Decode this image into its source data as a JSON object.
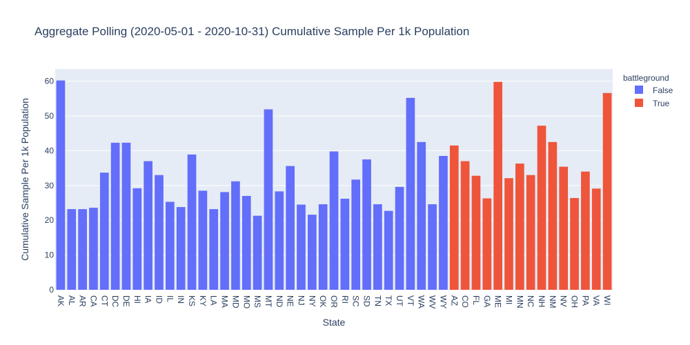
{
  "chart_data": {
    "type": "bar",
    "title": "Aggregate Polling (2020-05-01 - 2020-10-31) Cumulative Sample Per 1k Population",
    "xlabel": "State",
    "ylabel": "Cumulative Sample Per 1k Population",
    "ylim": [
      0,
      63.5
    ],
    "yticks": [
      0,
      10,
      20,
      30,
      40,
      50,
      60
    ],
    "grid": true,
    "legend": {
      "title": "battleground",
      "position": "top-right"
    },
    "categories": [
      "AK",
      "AL",
      "AR",
      "CA",
      "CT",
      "DC",
      "DE",
      "HI",
      "IA",
      "ID",
      "IL",
      "IN",
      "KS",
      "KY",
      "LA",
      "MA",
      "MD",
      "MO",
      "MS",
      "MT",
      "ND",
      "NE",
      "NJ",
      "NY",
      "OK",
      "OR",
      "RI",
      "SC",
      "SD",
      "TN",
      "TX",
      "UT",
      "VT",
      "WA",
      "WV",
      "WY",
      "AZ",
      "CO",
      "FL",
      "GA",
      "ME",
      "MI",
      "MN",
      "NC",
      "NH",
      "NM",
      "NV",
      "OH",
      "PA",
      "VA",
      "WI"
    ],
    "series": [
      {
        "name": "False",
        "color": "#636efa",
        "x": [
          "AK",
          "AL",
          "AR",
          "CA",
          "CT",
          "DC",
          "DE",
          "HI",
          "IA",
          "ID",
          "IL",
          "IN",
          "KS",
          "KY",
          "LA",
          "MA",
          "MD",
          "MO",
          "MS",
          "MT",
          "ND",
          "NE",
          "NJ",
          "NY",
          "OK",
          "OR",
          "RI",
          "SC",
          "SD",
          "TN",
          "TX",
          "UT",
          "VT",
          "WA",
          "WV",
          "WY"
        ],
        "values": [
          60.2,
          23.2,
          23.2,
          23.6,
          33.7,
          42.3,
          42.3,
          29.2,
          37.0,
          33.0,
          25.3,
          23.8,
          38.9,
          28.5,
          23.2,
          28.1,
          31.2,
          27.0,
          21.3,
          51.9,
          28.3,
          35.6,
          24.5,
          21.6,
          24.6,
          39.8,
          26.2,
          31.7,
          37.5,
          24.6,
          22.7,
          29.6,
          55.2,
          42.5,
          24.6,
          38.5
        ]
      },
      {
        "name": "True",
        "color": "#ef553b",
        "x": [
          "AZ",
          "CO",
          "FL",
          "GA",
          "ME",
          "MI",
          "MN",
          "NC",
          "NH",
          "NM",
          "NV",
          "OH",
          "PA",
          "VA",
          "WI"
        ],
        "values": [
          41.5,
          37.0,
          32.8,
          26.3,
          59.8,
          32.1,
          36.3,
          33.0,
          47.2,
          42.5,
          35.4,
          26.4,
          34.0,
          29.1,
          56.6
        ]
      }
    ]
  }
}
